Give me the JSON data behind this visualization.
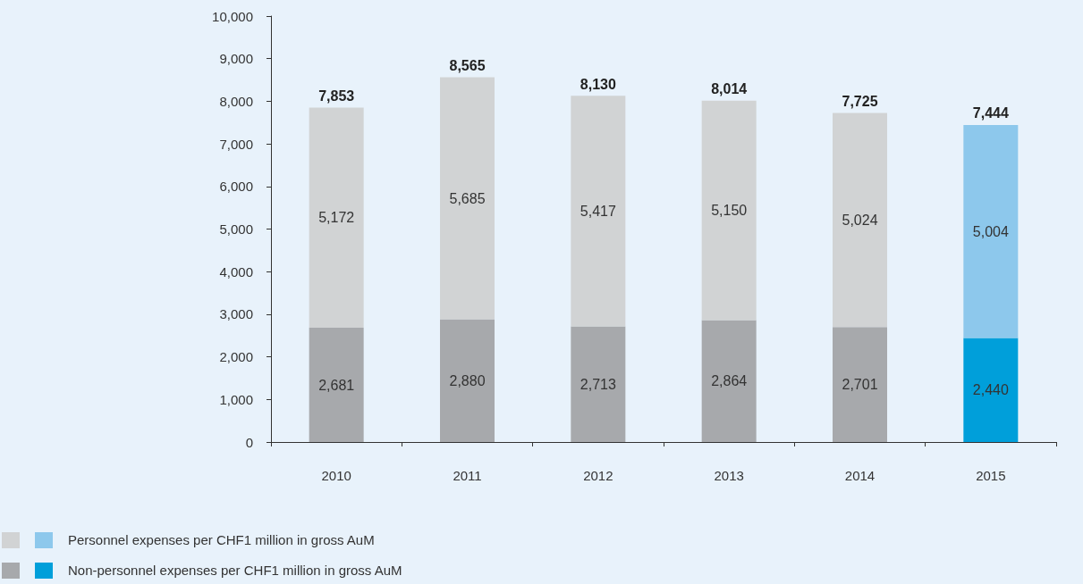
{
  "chart_data": {
    "type": "bar",
    "stacked": true,
    "categories": [
      "2010",
      "2011",
      "2012",
      "2013",
      "2014",
      "2015"
    ],
    "series": [
      {
        "name": "Non-personnel expenses per CHF1 million in gross AuM",
        "colors": [
          "#a7a9ac",
          "#a7a9ac",
          "#a7a9ac",
          "#a7a9ac",
          "#a7a9ac",
          "#009fda"
        ],
        "values": [
          2681,
          2880,
          2713,
          2864,
          2701,
          2440
        ],
        "value_labels": [
          "2,681",
          "2,880",
          "2,713",
          "2,864",
          "2,701",
          "2,440"
        ]
      },
      {
        "name": "Personnel expenses per CHF1 million in gross AuM",
        "colors": [
          "#d1d3d4",
          "#d1d3d4",
          "#d1d3d4",
          "#d1d3d4",
          "#d1d3d4",
          "#8dc8ec"
        ],
        "values": [
          5172,
          5685,
          5417,
          5150,
          5024,
          5004
        ],
        "value_labels": [
          "5,172",
          "5,685",
          "5,417",
          "5,150",
          "5,024",
          "5,004"
        ]
      }
    ],
    "totals": [
      "7,853",
      "8,565",
      "8,130",
      "8,014",
      "7,725",
      "7,444"
    ],
    "ylim": [
      0,
      10000
    ],
    "yticks": [
      {
        "value": 0,
        "label": "0"
      },
      {
        "value": 1000,
        "label": "1,000"
      },
      {
        "value": 2000,
        "label": "2,000"
      },
      {
        "value": 3000,
        "label": "3,000"
      },
      {
        "value": 4000,
        "label": "4,000"
      },
      {
        "value": 5000,
        "label": "5,000"
      },
      {
        "value": 6000,
        "label": "6,000"
      },
      {
        "value": 7000,
        "label": "7,000"
      },
      {
        "value": 8000,
        "label": "8,000"
      },
      {
        "value": 9000,
        "label": "9,000"
      },
      {
        "value": 10000,
        "label": "10,000"
      }
    ],
    "grid": false,
    "legend": "bottom left"
  }
}
